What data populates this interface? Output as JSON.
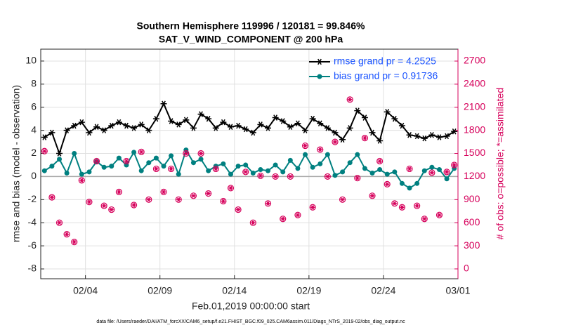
{
  "chart_data": {
    "type": "line",
    "title": "Southern Hemisphere 119996 / 120181 = 99.846%",
    "subtitle": "SAT_V_WIND_COMPONENT @ 200 hPa",
    "x_label": "Feb.01,2019 00:00:00 start",
    "y_label": "rmse and bias (model - observation)",
    "y2_label": "# of obs: o=possible; *=assimilated",
    "footer": "data file: /Users/raeder/DAI/ATM_forcXX/CAM6_setup/f.e21.FHIST_BGC.f09_025.CAM6assim.011/Diags_NTrS_2019-02/obs_diag_output.nc",
    "x": [
      1.25,
      1.75,
      2.25,
      2.75,
      3.25,
      3.75,
      4.25,
      4.75,
      5.25,
      5.75,
      6.25,
      6.75,
      7.25,
      7.75,
      8.25,
      8.75,
      9.25,
      9.75,
      10.25,
      10.75,
      11.25,
      11.75,
      12.25,
      12.75,
      13.25,
      13.75,
      14.25,
      14.75,
      15.25,
      15.75,
      16.25,
      16.75,
      17.25,
      17.75,
      18.25,
      18.75,
      19.25,
      19.75,
      20.25,
      20.75,
      21.25,
      21.75,
      22.25,
      22.75,
      23.25,
      23.75,
      24.25,
      24.75,
      25.25,
      25.75,
      26.25,
      26.75,
      27.25,
      27.75,
      28.25,
      28.75
    ],
    "series": [
      {
        "name": "rmse grand pr = 4.2525",
        "color": "#000000",
        "marker": "asterisk",
        "values": [
          3.4,
          3.8,
          2.0,
          4.0,
          4.4,
          4.7,
          3.8,
          4.3,
          4.0,
          4.4,
          4.7,
          4.4,
          4.2,
          4.5,
          4.0,
          5.0,
          6.3,
          4.8,
          4.5,
          4.9,
          4.2,
          5.4,
          5.0,
          4.2,
          4.7,
          4.3,
          4.4,
          4.1,
          3.8,
          4.5,
          4.2,
          5.1,
          4.8,
          4.3,
          4.6,
          4.0,
          5.0,
          4.6,
          4.2,
          3.8,
          3.2,
          4.2,
          5.7,
          5.1,
          3.8,
          3.1,
          5.6,
          5.0,
          4.4,
          3.6,
          3.5,
          3.3,
          3.6,
          3.4,
          3.5,
          3.9
        ]
      },
      {
        "name": "bias grand pr = 0.91736",
        "color": "#008080",
        "marker": "circle",
        "values": [
          0.5,
          0.9,
          1.5,
          0.3,
          2.0,
          0.2,
          0.4,
          1.3,
          0.8,
          0.9,
          1.6,
          1.0,
          2.1,
          0.5,
          1.2,
          1.6,
          0.9,
          1.8,
          0.2,
          2.3,
          1.2,
          1.5,
          0.5,
          0.9,
          1.1,
          0.2,
          0.9,
          1.0,
          0.3,
          0.6,
          0.5,
          1.0,
          0.4,
          1.4,
          0.7,
          1.9,
          0.8,
          1.1,
          1.9,
          0.1,
          0.4,
          1.2,
          1.9,
          0.7,
          0.3,
          0.6,
          0.2,
          0.4,
          -0.6,
          -1.0,
          -0.6,
          0.5,
          0.8,
          0.6,
          -0.2,
          0.7
        ]
      },
      {
        "color": "#d6005b",
        "marker": "circle-asterisk",
        "axis": "y2",
        "line": false,
        "values": [
          1530,
          930,
          600,
          450,
          350,
          1150,
          870,
          1400,
          820,
          770,
          1000,
          1400,
          830,
          1520,
          900,
          1300,
          1000,
          1300,
          900,
          1500,
          950,
          1500,
          980,
          1300,
          880,
          1050,
          770,
          1260,
          600,
          1210,
          850,
          1200,
          650,
          1200,
          700,
          1600,
          800,
          1550,
          1200,
          1650,
          900,
          2200,
          1180,
          1700,
          950,
          1400,
          1100,
          850,
          800,
          1300,
          820,
          650,
          1250,
          700,
          1260,
          1350
        ]
      }
    ],
    "xlim": [
      1,
      29
    ],
    "xticks": [
      {
        "value": 4,
        "label": "02/04"
      },
      {
        "value": 9,
        "label": "02/09"
      },
      {
        "value": 14,
        "label": "02/14"
      },
      {
        "value": 19,
        "label": "02/19"
      },
      {
        "value": 24,
        "label": "02/24"
      },
      {
        "value": 29,
        "label": "03/01"
      }
    ],
    "ylim": [
      -8.85,
      11.03
    ],
    "yticks": [
      -8,
      -6,
      -4,
      -2,
      0,
      2,
      4,
      6,
      8,
      10
    ],
    "y2lim": [
      -128,
      2855
    ],
    "y2ticks": [
      0,
      300,
      600,
      900,
      1200,
      1500,
      1800,
      2100,
      2400,
      2700
    ],
    "grid": true,
    "zero_line": true,
    "legend": "upper right"
  }
}
